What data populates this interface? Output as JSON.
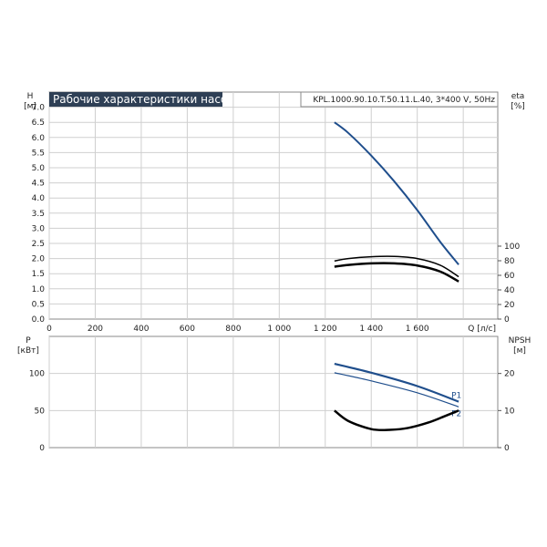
{
  "chart_data": [
    {
      "type": "line",
      "panel": "upper",
      "title": "Рабочие характеристики насоса",
      "model": "KPL.1000.90.10.T.50.11.L.40, 3*400 V, 50Hz",
      "xlabel": "Q [л/с]",
      "ylabel_left_name": "H",
      "ylabel_left_unit": "[м]",
      "ylabel_right_name": "eta",
      "ylabel_right_unit": "[%]",
      "xlim": [
        0,
        1950
      ],
      "ylim_left": [
        0,
        7.5
      ],
      "ylim_right": [
        0,
        100
      ],
      "x_ticks": [
        {
          "value": 0,
          "label": "0"
        },
        {
          "value": 200,
          "label": "200"
        },
        {
          "value": 400,
          "label": "400"
        },
        {
          "value": 600,
          "label": "600"
        },
        {
          "value": 800,
          "label": "800"
        },
        {
          "value": 1000,
          "label": "1 000"
        },
        {
          "value": 1200,
          "label": "1 200"
        },
        {
          "value": 1400,
          "label": "1 400"
        },
        {
          "value": 1600,
          "label": "1 600"
        }
      ],
      "y_left_ticks": [
        "0.0",
        "0.5",
        "1.0",
        "1.5",
        "2.0",
        "2.5",
        "3.0",
        "3.5",
        "4.0",
        "4.5",
        "5.0",
        "5.5",
        "6.0",
        "6.5",
        "7.0"
      ],
      "y_right_ticks": [
        "0",
        "20",
        "40",
        "60",
        "80",
        "100"
      ],
      "grid": true,
      "series": [
        {
          "color": "#1f4e8c",
          "axis": "left",
          "x": [
            1240,
            1300,
            1400,
            1500,
            1600,
            1700,
            1780
          ],
          "y": [
            6.5,
            6.15,
            5.4,
            4.55,
            3.6,
            2.55,
            1.8
          ]
        },
        {
          "color": "#000000",
          "axis": "left",
          "x": [
            1240,
            1300,
            1400,
            1500,
            1600,
            1700,
            1780
          ],
          "y": [
            1.92,
            2.0,
            2.06,
            2.07,
            2.0,
            1.78,
            1.4
          ]
        },
        {
          "color": "#000000",
          "axis": "left",
          "x": [
            1240,
            1300,
            1400,
            1500,
            1600,
            1700,
            1780
          ],
          "y": [
            1.73,
            1.79,
            1.84,
            1.84,
            1.77,
            1.57,
            1.24
          ]
        }
      ]
    },
    {
      "type": "line",
      "panel": "lower",
      "ylabel_left_name": "P",
      "ylabel_left_unit": "[кВт]",
      "ylabel_right_name": "NPSH",
      "ylabel_right_unit": "[м]",
      "xlim": [
        0,
        1950
      ],
      "ylim_left": [
        0,
        150
      ],
      "ylim_right": [
        0,
        30
      ],
      "y_left_ticks": [
        "0",
        "50",
        "100"
      ],
      "y_right_ticks": [
        "0",
        "10",
        "20"
      ],
      "grid": true,
      "series": [
        {
          "name": "P1",
          "color": "#1f4e8c",
          "axis": "left",
          "x": [
            1240,
            1400,
            1600,
            1780
          ],
          "y": [
            113,
            101,
            83,
            62
          ]
        },
        {
          "name": "P2",
          "color": "#1f4e8c",
          "axis": "left",
          "x": [
            1240,
            1400,
            1600,
            1780
          ],
          "y": [
            101,
            90,
            74,
            55
          ]
        },
        {
          "color": "#000000",
          "axis": "right",
          "x": [
            1240,
            1300,
            1400,
            1480,
            1560,
            1650,
            1720,
            1780
          ],
          "y": [
            10.0,
            7.2,
            5.0,
            4.8,
            5.3,
            6.8,
            8.5,
            10.0
          ]
        }
      ]
    }
  ]
}
